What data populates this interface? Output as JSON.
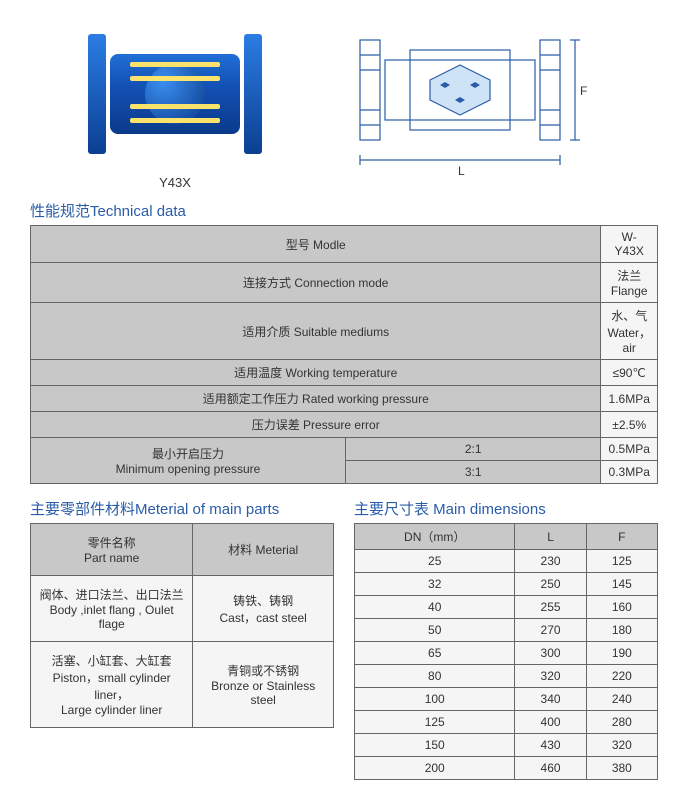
{
  "figures": {
    "photo_label": "Y43X",
    "drawing_labels": {
      "L": "L",
      "F": "F"
    }
  },
  "tech": {
    "section": "性能规范Technical data",
    "rows": [
      {
        "label": "型号 Modle",
        "value": "W-Y43X"
      },
      {
        "label": "连接方式 Connection mode",
        "value": "法兰 Flange"
      },
      {
        "label": "适用介质 Suitable mediums",
        "value": "水、气 Water，air"
      },
      {
        "label": "适用温度 Working temperature",
        "value": "≤90℃"
      },
      {
        "label": "适用额定工作压力 Rated working pressure",
        "value": "1.6MPa"
      },
      {
        "label": "压力误差 Pressure error",
        "value": "±2.5%"
      }
    ],
    "min_open": {
      "label": "最小开启压力\nMinimum opening pressure",
      "sub": [
        {
          "ratio": "2:1",
          "value": "0.5MPa"
        },
        {
          "ratio": "3:1",
          "value": "0.3MPa"
        }
      ]
    }
  },
  "materials": {
    "section": "主要零部件材料Meterial of main parts",
    "headers": {
      "part": "零件名称\nPart name",
      "mat": "材料 Meterial"
    },
    "rows": [
      {
        "part": "阀体、进口法兰、出口法兰\nBody ,inlet flang , Oulet flage",
        "mat": "铸铁、铸钢\nCast，cast steel"
      },
      {
        "part": "活塞、小缸套、大缸套\nPiston，small cylinder liner，\nLarge cylinder liner",
        "mat": "青铜或不锈钢\nBronze or Stainless steel"
      }
    ]
  },
  "dimensions": {
    "section": "主要尺寸表 Main dimensions",
    "headers": {
      "dn": "DN（mm）",
      "L": "L",
      "F": "F"
    },
    "rows": [
      {
        "dn": "25",
        "L": "230",
        "F": "125"
      },
      {
        "dn": "32",
        "L": "250",
        "F": "145"
      },
      {
        "dn": "40",
        "L": "255",
        "F": "160"
      },
      {
        "dn": "50",
        "L": "270",
        "F": "180"
      },
      {
        "dn": "65",
        "L": "300",
        "F": "190"
      },
      {
        "dn": "80",
        "L": "320",
        "F": "220"
      },
      {
        "dn": "100",
        "L": "340",
        "F": "240"
      },
      {
        "dn": "125",
        "L": "400",
        "F": "280"
      },
      {
        "dn": "150",
        "L": "430",
        "F": "320"
      },
      {
        "dn": "200",
        "L": "460",
        "F": "380"
      }
    ]
  },
  "colors": {
    "header_bg": "#c8c8c8",
    "body_bg": "#f5f5f5",
    "title": "#2a5ca8",
    "border": "#666666",
    "valve_blue_top": "#1f6fd6",
    "valve_blue_bot": "#0a3a8a",
    "bolt_yellow": "#fbe36b",
    "drawing_blue": "#2a5ca8"
  }
}
